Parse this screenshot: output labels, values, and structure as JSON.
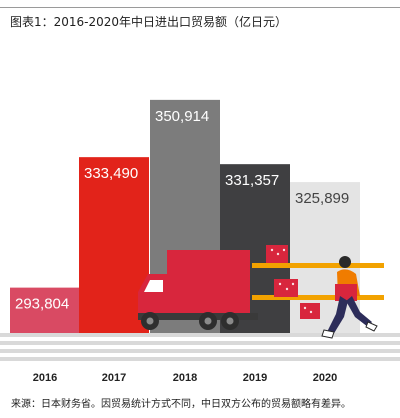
{
  "chart_data": {
    "type": "bar",
    "title": "图表1：2016-2020年中日进出口贸易额（亿日元）",
    "categories": [
      "2016",
      "2017",
      "2018",
      "2019",
      "2020"
    ],
    "values": [
      293804,
      333490,
      350914,
      331357,
      325899
    ],
    "value_labels": [
      "293,804",
      "333,490",
      "350,914",
      "331,357",
      "325,899"
    ],
    "bar_colors": [
      "#d94a63",
      "#e2231a",
      "#7c7c7c",
      "#3f3f41",
      "#e4e4e4"
    ],
    "value_label_colors": [
      "#ffffff",
      "#ffffff",
      "#ffffff",
      "#ffffff",
      "#444444"
    ],
    "ylim": [
      280000,
      360000
    ],
    "grid": false,
    "legend": "none",
    "source": "来源：日本财务省。因贸易统计方式不同，中日双方公布的贸易额略有差异。"
  },
  "decoration": {
    "illustration": "delivery-truck-and-runner-icon",
    "colors": {
      "truck": "#d8263d",
      "box": "#d8263d",
      "shelf": "#f2a200",
      "runner_shirt": "#f07c00",
      "road": "#d9d9d9"
    }
  }
}
